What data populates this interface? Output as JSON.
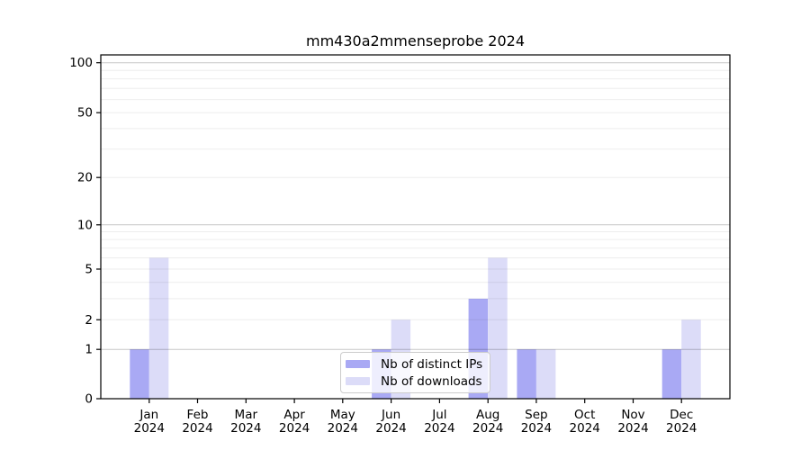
{
  "chart_data": {
    "type": "bar",
    "title": "mm430a2mmenseprobe 2024",
    "year_label": "2024",
    "categories": [
      "Jan",
      "Feb",
      "Mar",
      "Apr",
      "May",
      "Jun",
      "Jul",
      "Aug",
      "Sep",
      "Oct",
      "Nov",
      "Dec"
    ],
    "series": [
      {
        "name": "Nb of distinct IPs",
        "color": "#a9a9f4",
        "values": [
          1,
          0,
          0,
          0,
          0,
          1,
          0,
          3,
          1,
          0,
          0,
          1
        ]
      },
      {
        "name": "Nb of downloads",
        "color": "#dcdcf8",
        "values": [
          6,
          0,
          0,
          0,
          0,
          2,
          0,
          6,
          1,
          0,
          0,
          2
        ]
      }
    ],
    "legend": {
      "position": "lower center",
      "entries": [
        "Nb of distinct IPs",
        "Nb of downloads"
      ]
    },
    "y_axis": {
      "scale": "log1p",
      "labeled_ticks": [
        100,
        50,
        20,
        10,
        5,
        2,
        1,
        0
      ],
      "major_gridlines": [
        1,
        10,
        100
      ],
      "minor_gridlines": [
        2,
        3,
        4,
        5,
        6,
        7,
        8,
        9,
        20,
        30,
        40,
        50,
        60,
        70,
        80,
        90
      ],
      "range_top": 113
    },
    "x_axis": {
      "xlim": [
        -1,
        12
      ],
      "bar_width": 0.4
    },
    "grid": true
  },
  "colors": {
    "background": "#ffffff",
    "axis": "#000000",
    "tick_text": "#000000",
    "grid_major": "rgba(0,0,0,0.22)",
    "grid_minor": "rgba(0,0,0,0.07)",
    "legend_border": "#cccccc",
    "legend_background": "rgba(255,255,255,0.8)"
  }
}
